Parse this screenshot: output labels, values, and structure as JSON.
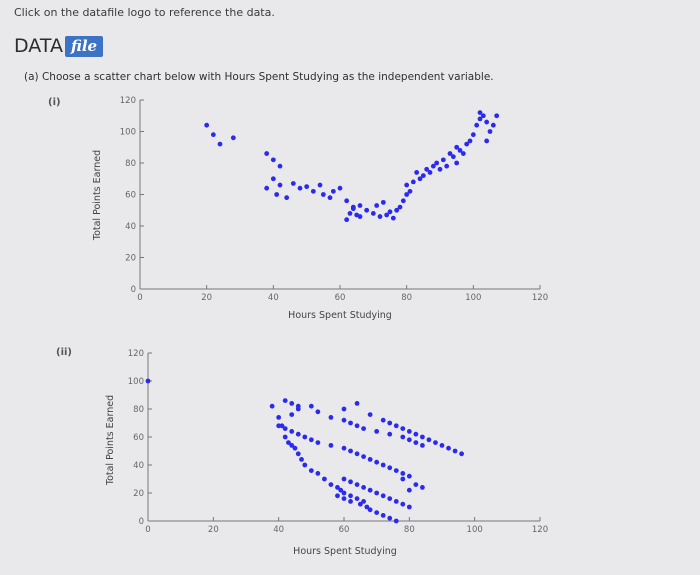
{
  "instruction": "Click on the datafile logo to reference the data.",
  "datafile": {
    "word": "DATA",
    "badge": "file"
  },
  "question": "(a) Choose a scatter chart below with Hours Spent Studying as the independent variable.",
  "options": [
    {
      "label": "(i)"
    },
    {
      "label": "(ii)"
    }
  ],
  "colors": {
    "points": "#2a2af0",
    "axis": "#777777",
    "background": "#e9e9ec",
    "badge": "#3c73c4"
  },
  "chart_data": [
    {
      "type": "scatter",
      "xlabel": "Hours Spent Studying",
      "ylabel": "Total Points Earned",
      "xlim": [
        0,
        120
      ],
      "ylim": [
        0,
        120
      ],
      "xticks": [
        "0",
        "20",
        "40",
        "60",
        "80",
        "100",
        "120"
      ],
      "yticks": [
        "0",
        "20",
        "40",
        "60",
        "80",
        "100",
        "120"
      ],
      "grid": false,
      "x": [
        20,
        22,
        24,
        28,
        38,
        40,
        42,
        40,
        38,
        41,
        44,
        42,
        46,
        48,
        50,
        52,
        54,
        55,
        57,
        58,
        60,
        62,
        64,
        63,
        65,
        66,
        62,
        64,
        66,
        68,
        70,
        72,
        71,
        73,
        75,
        76,
        77,
        74,
        78,
        79,
        80,
        81,
        80,
        82,
        84,
        83,
        85,
        86,
        88,
        87,
        89,
        90,
        91,
        92,
        93,
        94,
        95,
        96,
        95,
        97,
        98,
        99,
        100,
        101,
        102,
        103,
        102,
        104,
        105,
        106,
        107,
        104
      ],
      "y": [
        104,
        98,
        92,
        96,
        86,
        82,
        78,
        70,
        64,
        60,
        58,
        66,
        67,
        64,
        65,
        62,
        66,
        60,
        58,
        62,
        64,
        56,
        52,
        48,
        47,
        46,
        44,
        51,
        53,
        50,
        48,
        46,
        53,
        55,
        49,
        45,
        50,
        47,
        52,
        56,
        60,
        62,
        66,
        68,
        70,
        74,
        72,
        76,
        78,
        74,
        80,
        76,
        82,
        78,
        86,
        84,
        80,
        88,
        90,
        86,
        92,
        94,
        98,
        104,
        108,
        110,
        112,
        106,
        100,
        104,
        110,
        94
      ]
    },
    {
      "type": "scatter",
      "xlabel": "Hours Spent Studying",
      "ylabel": "Total Points Earned",
      "xlim": [
        0,
        120
      ],
      "ylim": [
        0,
        120
      ],
      "xticks": [
        "0",
        "20",
        "40",
        "60",
        "80",
        "100",
        "120"
      ],
      "yticks": [
        "0",
        "20",
        "40",
        "60",
        "80",
        "100",
        "120"
      ],
      "grid": false,
      "x": [
        0,
        38,
        40,
        41,
        42,
        43,
        44,
        45,
        46,
        47,
        48,
        50,
        52,
        54,
        56,
        58,
        59,
        60,
        62,
        64,
        66,
        65,
        67,
        68,
        70,
        72,
        74,
        76,
        78,
        80,
        82,
        84,
        44,
        46,
        50,
        52,
        56,
        60,
        64,
        68,
        72,
        74,
        76,
        78,
        80,
        82,
        84,
        86,
        88,
        90,
        92,
        94,
        96,
        40,
        42,
        44,
        46,
        48,
        50,
        52,
        56,
        60,
        62,
        64,
        66,
        68,
        70,
        72,
        74,
        76,
        78,
        80,
        60,
        62,
        64,
        66,
        68,
        70,
        72,
        74,
        76,
        78,
        80,
        42,
        44,
        46,
        60,
        62,
        64,
        66,
        70,
        74,
        78,
        80,
        82,
        84,
        58,
        60,
        62
      ],
      "y": [
        100,
        82,
        74,
        68,
        60,
        56,
        54,
        52,
        48,
        44,
        40,
        36,
        34,
        30,
        26,
        24,
        22,
        20,
        18,
        16,
        14,
        12,
        10,
        8,
        6,
        4,
        2,
        0,
        30,
        22,
        26,
        24,
        76,
        80,
        82,
        78,
        74,
        80,
        84,
        76,
        72,
        70,
        68,
        66,
        64,
        62,
        60,
        58,
        56,
        54,
        52,
        50,
        48,
        68,
        66,
        64,
        62,
        60,
        58,
        56,
        54,
        52,
        50,
        48,
        46,
        44,
        42,
        40,
        38,
        36,
        34,
        32,
        30,
        28,
        26,
        24,
        22,
        20,
        18,
        16,
        14,
        12,
        10,
        86,
        84,
        82,
        72,
        70,
        68,
        66,
        64,
        62,
        60,
        58,
        56,
        54,
        18,
        16,
        14
      ]
    }
  ],
  "chart_labels": [
    {
      "xlabel": "Hours Spent Studying",
      "ylabel": "Total Points Earned"
    },
    {
      "xlabel": "Hours Spent Studying",
      "ylabel": "Total Points Earned"
    }
  ]
}
